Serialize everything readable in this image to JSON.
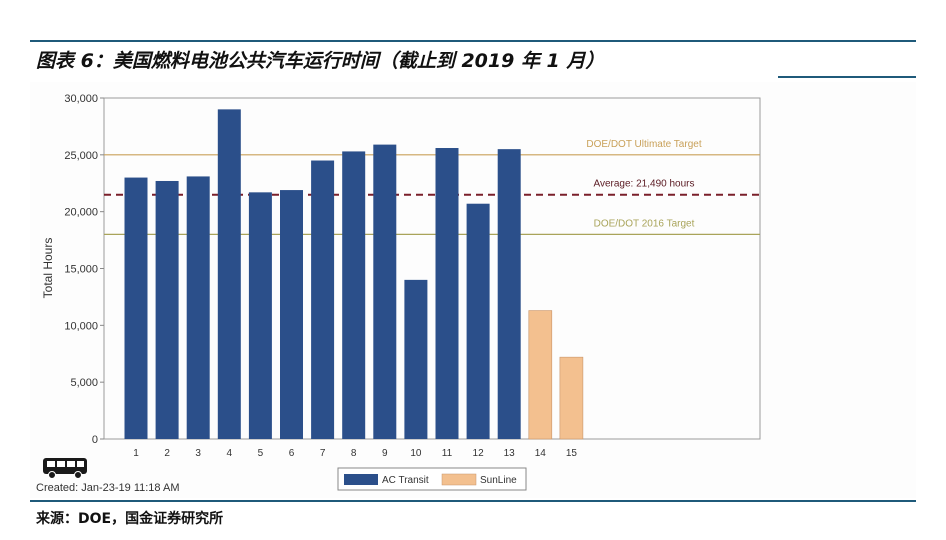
{
  "figure": {
    "title": "图表 6：美国燃料电池公共汽车运行时间（截止到 2019 年 1 月）",
    "source": "来源：DOE，国金证券研究所",
    "created": "Created: Jan-23-19 11:18 AM"
  },
  "chart_data": {
    "type": "bar",
    "ylabel": "Total Hours",
    "xlabel": "",
    "ylim": [
      0,
      30000
    ],
    "yticks": [
      0,
      5000,
      10000,
      15000,
      20000,
      25000,
      30000
    ],
    "ytick_labels": [
      "0",
      "5,000",
      "10,000",
      "15,000",
      "20,000",
      "25,000",
      "30,000"
    ],
    "categories": [
      "1",
      "2",
      "3",
      "4",
      "5",
      "6",
      "7",
      "8",
      "9",
      "10",
      "11",
      "12",
      "13",
      "14",
      "15"
    ],
    "series": [
      {
        "name": "AC Transit",
        "color": "#2b4f8a",
        "values": [
          23000,
          22700,
          23100,
          29000,
          21700,
          21900,
          24500,
          25300,
          25900,
          14000,
          25600,
          20700,
          25500,
          null,
          null
        ]
      },
      {
        "name": "SunLine",
        "color": "#f3c08f",
        "values": [
          null,
          null,
          null,
          null,
          null,
          null,
          null,
          null,
          null,
          null,
          null,
          null,
          null,
          11300,
          7200
        ]
      }
    ],
    "reference_lines": [
      {
        "label": "DOE/DOT Ultimate Target",
        "value": 25000,
        "style": "solid",
        "color": "#c9a15a"
      },
      {
        "label": "Average: 21,490 hours",
        "value": 21490,
        "style": "dashed",
        "color": "#7a1f2a"
      },
      {
        "label": "DOE/DOT 2016 Target",
        "value": 18000,
        "style": "solid",
        "color": "#a9a45a"
      }
    ],
    "grid": false,
    "legend_position": "bottom-center"
  }
}
